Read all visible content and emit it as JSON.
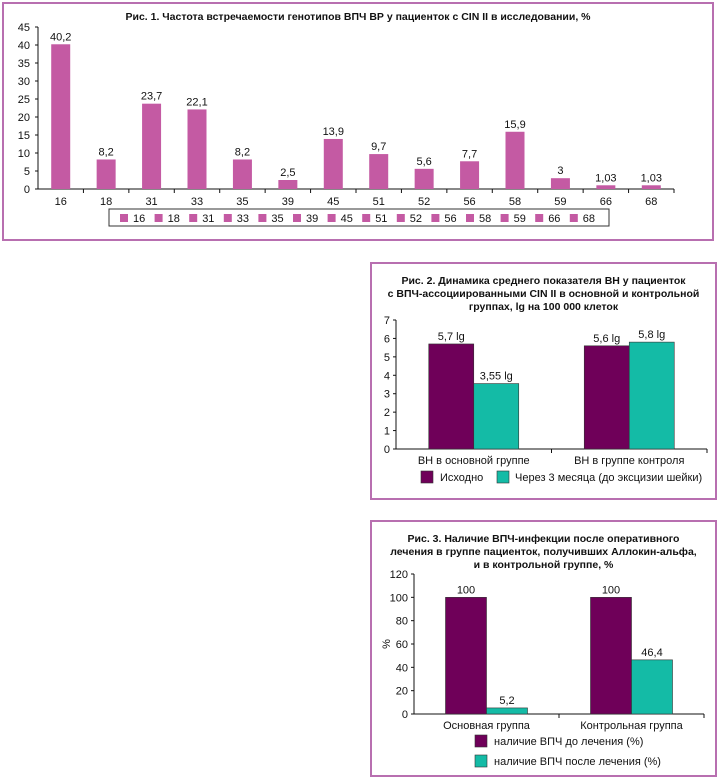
{
  "colors": {
    "frame": "#b86fb0",
    "fig1_bar": "#c45aa3",
    "dark_purple": "#6f0059",
    "teal": "#14bba6"
  },
  "chart_data": [
    {
      "id": "fig1",
      "type": "bar",
      "title": "Рис. 1. Частота встречаемости генотипов ВПЧ ВР у пациенток с CIN II в исследовании, %",
      "xlabel": "",
      "ylabel": "",
      "ylim": [
        0,
        45
      ],
      "yticks": [
        0,
        5,
        10,
        15,
        20,
        25,
        30,
        35,
        40,
        45
      ],
      "categories": [
        "16",
        "18",
        "31",
        "33",
        "35",
        "39",
        "45",
        "51",
        "52",
        "56",
        "58",
        "59",
        "66",
        "68"
      ],
      "values": [
        40.2,
        8.2,
        23.7,
        22.1,
        8.2,
        2.5,
        13.9,
        9.7,
        5.6,
        7.7,
        15.9,
        3,
        1.03,
        1.03
      ],
      "value_labels": [
        "40,2",
        "8,2",
        "23,7",
        "22,1",
        "8,2",
        "2,5",
        "13,9",
        "9,7",
        "5,6",
        "7,7",
        "15,9",
        "3",
        "1,03",
        "1,03"
      ],
      "legend": [
        "16",
        "18",
        "31",
        "33",
        "35",
        "39",
        "45",
        "51",
        "52",
        "56",
        "58",
        "59",
        "66",
        "68"
      ],
      "legend_position": "bottom",
      "grid": false
    },
    {
      "id": "fig2",
      "type": "bar",
      "title_lines": [
        "Рис. 2.  Динамика среднего показателя ВН у пациенток",
        "с ВПЧ-ассоциированными CIN II в основной и контрольной",
        "группах, lg на 100 000 клеток"
      ],
      "xlabel": "",
      "ylabel": "",
      "ylim": [
        0,
        7
      ],
      "yticks": [
        0,
        1,
        2,
        3,
        4,
        5,
        6,
        7
      ],
      "categories": [
        "ВН в основной группе",
        "ВН в группе контроля"
      ],
      "series": [
        {
          "name": "Исходно",
          "values": [
            5.7,
            5.6
          ],
          "labels": [
            "5,7 lg",
            "5,6 lg"
          ]
        },
        {
          "name": "Через 3 месяца (до эксцизии шейки)",
          "values": [
            3.55,
            5.8
          ],
          "labels": [
            "3,55 lg",
            "5,8 lg"
          ]
        }
      ],
      "legend_position": "bottom",
      "grid": false
    },
    {
      "id": "fig3",
      "type": "bar",
      "title_lines": [
        "Рис. 3. Наличие ВПЧ-инфекции после оперативного",
        "лечения в группе пациенток, получивших Аллокин-альфа,",
        "и в контрольной группе, %"
      ],
      "xlabel": "",
      "ylabel": "%",
      "ylim": [
        0,
        120
      ],
      "yticks": [
        0,
        20,
        40,
        60,
        80,
        100,
        120
      ],
      "categories": [
        "Основная группа",
        "Контрольная группа"
      ],
      "series": [
        {
          "name": "наличие ВПЧ до лечения (%)",
          "values": [
            100,
            100
          ],
          "labels": [
            "100",
            "100"
          ]
        },
        {
          "name": "наличие ВПЧ после лечения (%)",
          "values": [
            5.2,
            46.4
          ],
          "labels": [
            "5,2",
            "46,4"
          ]
        }
      ],
      "legend_position": "bottom",
      "grid": false
    }
  ]
}
